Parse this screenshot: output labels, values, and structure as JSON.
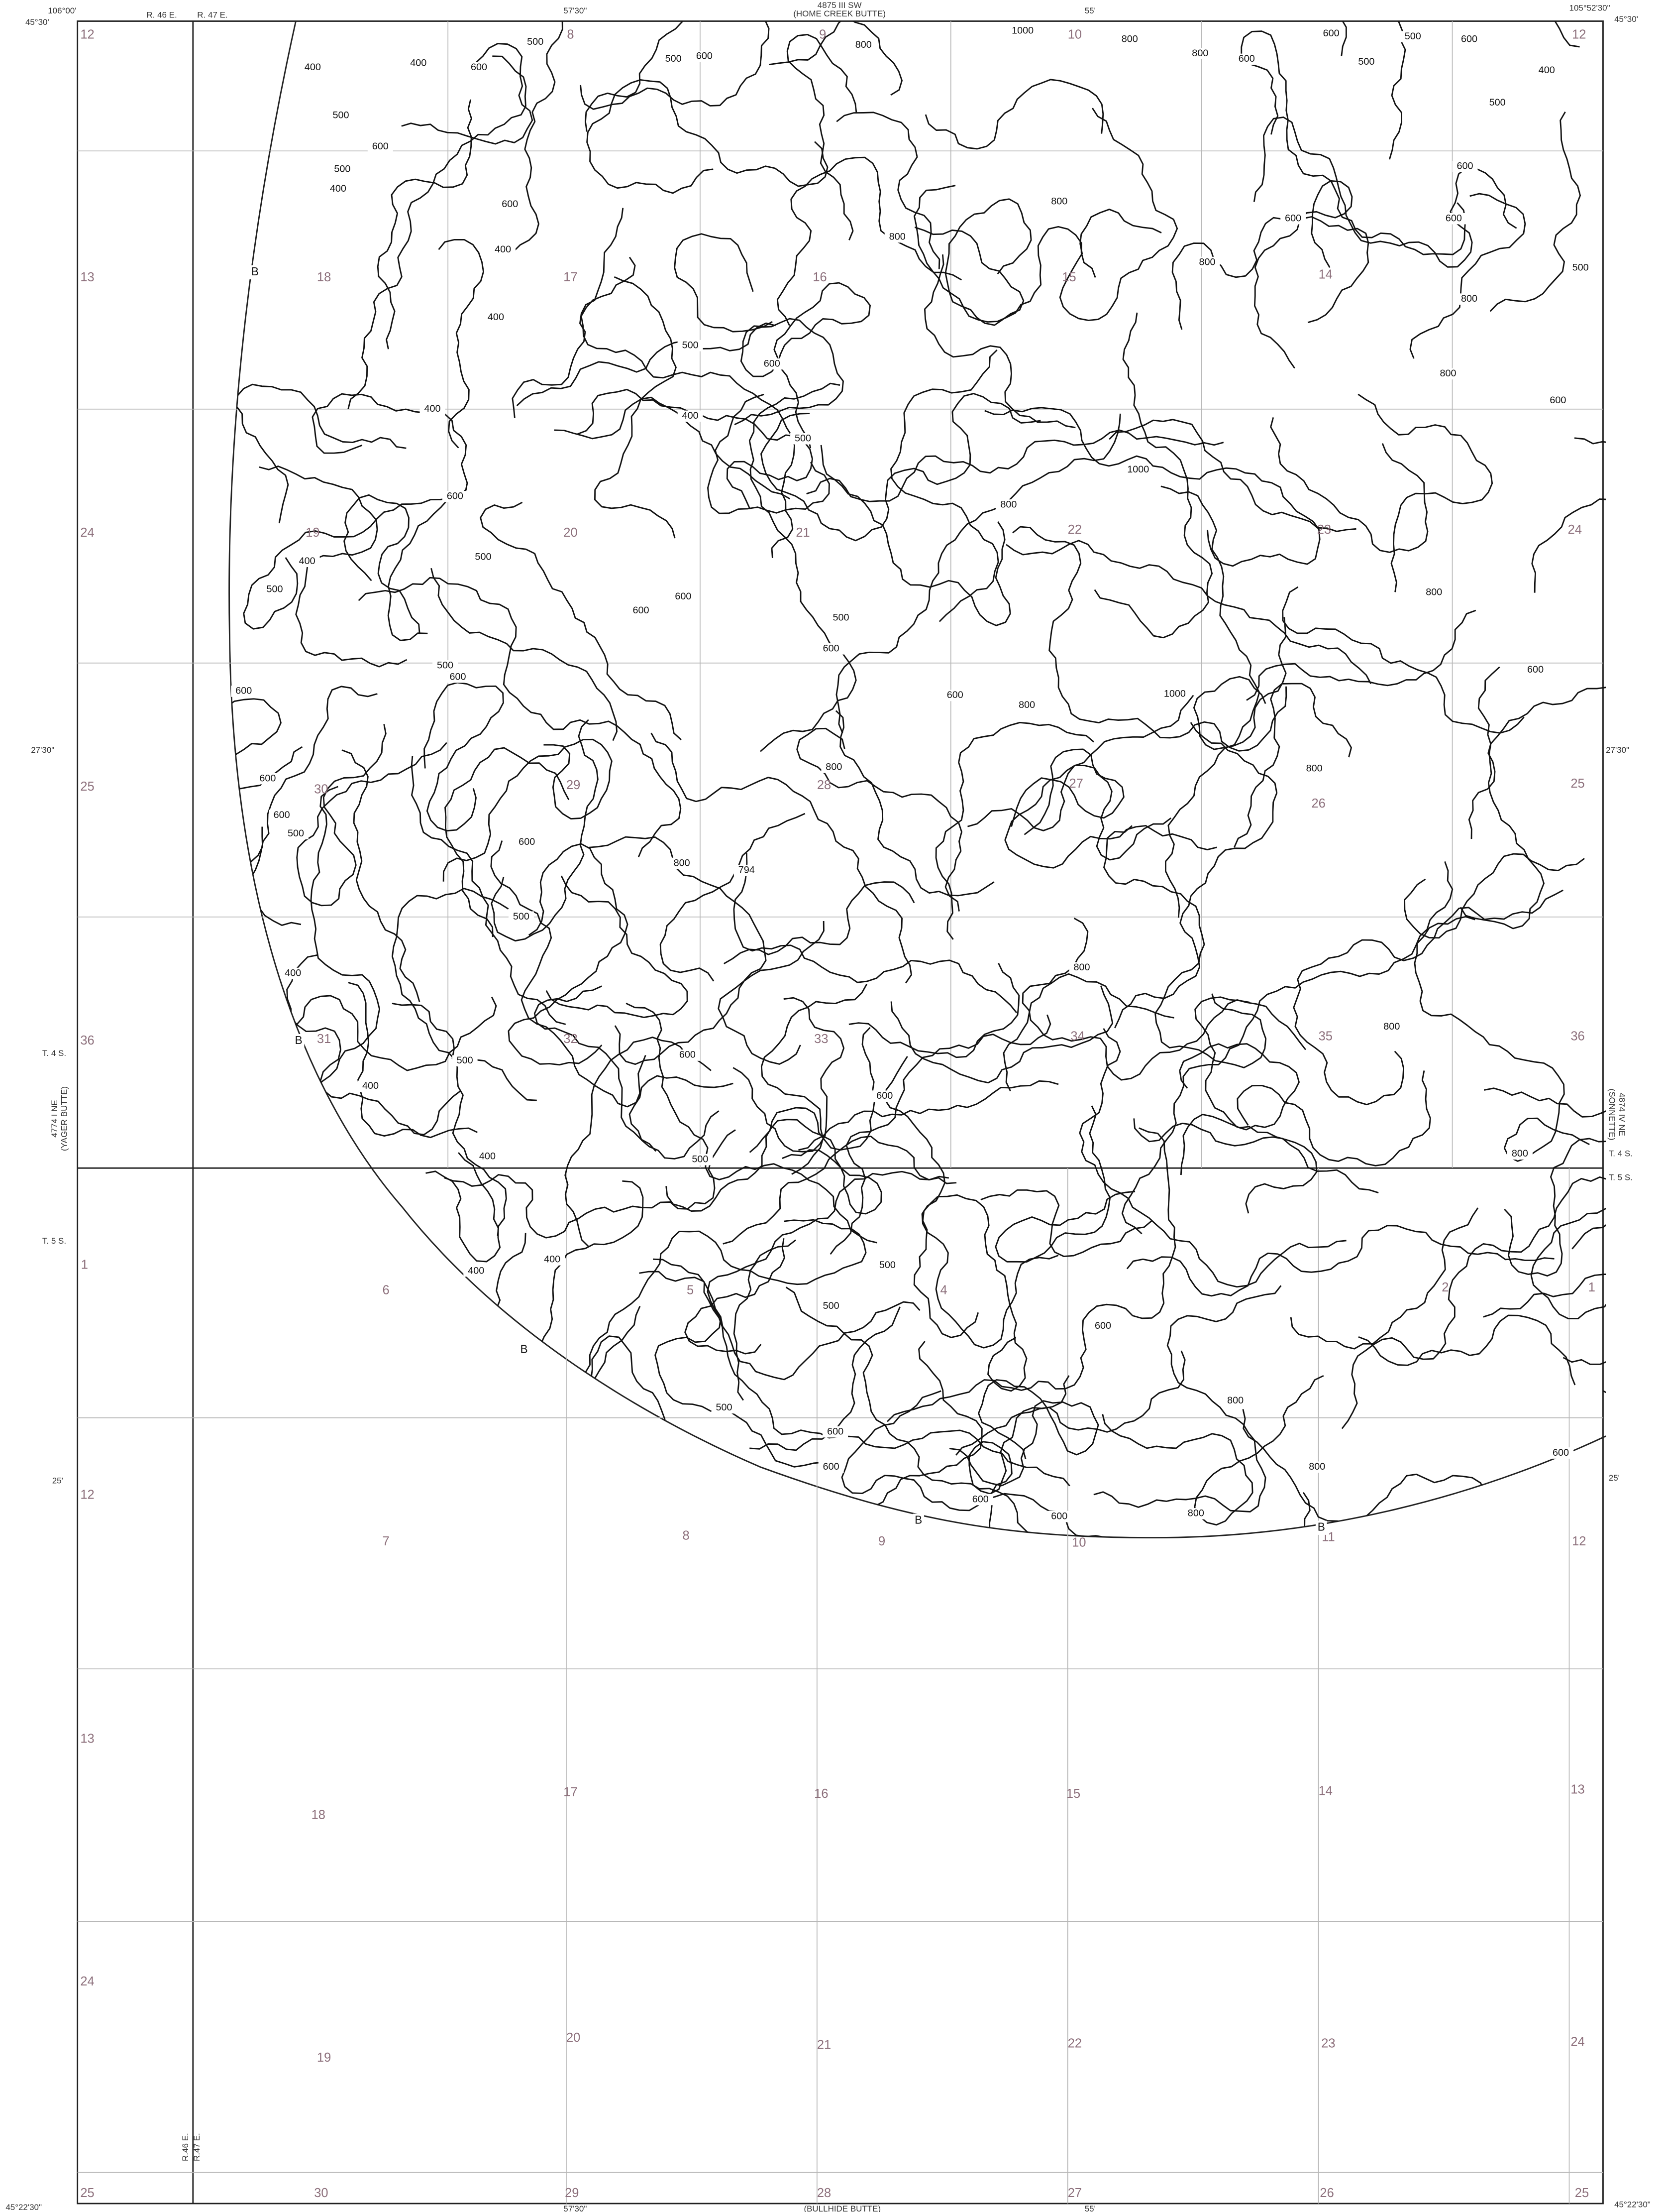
{
  "margin": {
    "top_left_lon": "106°00'",
    "top_left_lat": "45°30'",
    "top_range_left": "R. 46 E.",
    "top_range_right": "R. 47 E.",
    "top_lon_1": "57'30\"",
    "top_quad_number": "4875 III SW",
    "top_quad_name": "(HOME CREEK BUTTE)",
    "top_lon_2": "55'",
    "top_right_lon": "105°52'30\"",
    "top_right_lat": "45°30'",
    "left_lat_1": "27'30\"",
    "left_township_1": "T. 4 S.",
    "left_quad_number": "4774 I NE",
    "left_quad_name": "(YAGER BUTTE)",
    "left_township_2": "T. 5 S.",
    "left_lat_2": "25'",
    "bottom_left_lat": "45°22'30\"",
    "right_lat_1": "27'30\"",
    "right_quad_name": "(SONNETTE)",
    "right_quad_number": "4874 IV NE",
    "right_township_1": "T. 4 S.",
    "right_township_2": "T. 5 S.",
    "right_lat_2": "25'",
    "bottom_range_left": "R.46 E.",
    "bottom_range_right": "R.47 E.",
    "bottom_lon_1": "57'30\"",
    "bottom_quad_name": "(BULLHIDE BUTTE)",
    "bottom_lon_2": "55'",
    "bottom_right_lat": "45°22'30\""
  },
  "sections": [
    "12",
    "8",
    "9",
    "10",
    "12",
    "13",
    "18",
    "17",
    "16",
    "15",
    "14",
    "24",
    "19",
    "20",
    "21",
    "22",
    "23",
    "24",
    "25",
    "30",
    "29",
    "28",
    "27",
    "26",
    "25",
    "36",
    "31",
    "32",
    "33",
    "34",
    "35",
    "36",
    "1",
    "6",
    "5",
    "4",
    "2",
    "1",
    "12",
    "7",
    "8",
    "9",
    "10",
    "11",
    "12",
    "13",
    "18",
    "17",
    "16",
    "15",
    "14",
    "13",
    "24",
    "19",
    "20",
    "21",
    "22",
    "23",
    "24",
    "25",
    "30",
    "29",
    "28",
    "27",
    "26",
    "25"
  ],
  "contour_labels": [
    "400",
    "400",
    "500",
    "600",
    "500",
    "600",
    "800",
    "1000",
    "800",
    "800",
    "600",
    "600",
    "500",
    "500",
    "600",
    "400",
    "500",
    "600",
    "400",
    "500",
    "600",
    "400",
    "400",
    "500",
    "600",
    "400",
    "500",
    "800",
    "800",
    "800",
    "600",
    "600",
    "600",
    "500",
    "800",
    "800",
    "600",
    "500",
    "1000",
    "800",
    "400",
    "600",
    "500",
    "400",
    "500",
    "600",
    "600",
    "500",
    "600",
    "600",
    "800",
    "1000",
    "800",
    "600",
    "600",
    "500",
    "600",
    "600",
    "600",
    "500",
    "600",
    "800",
    "800",
    "794",
    "500",
    "400",
    "800",
    "800",
    "800",
    "600",
    "600",
    "400",
    "500",
    "400",
    "500",
    "800",
    "400",
    "400",
    "500",
    "500",
    "600",
    "800",
    "600",
    "500",
    "600",
    "600",
    "800",
    "600",
    "600",
    "800"
  ],
  "arc_labels": [
    "B",
    "B",
    "B",
    "B",
    "B"
  ]
}
